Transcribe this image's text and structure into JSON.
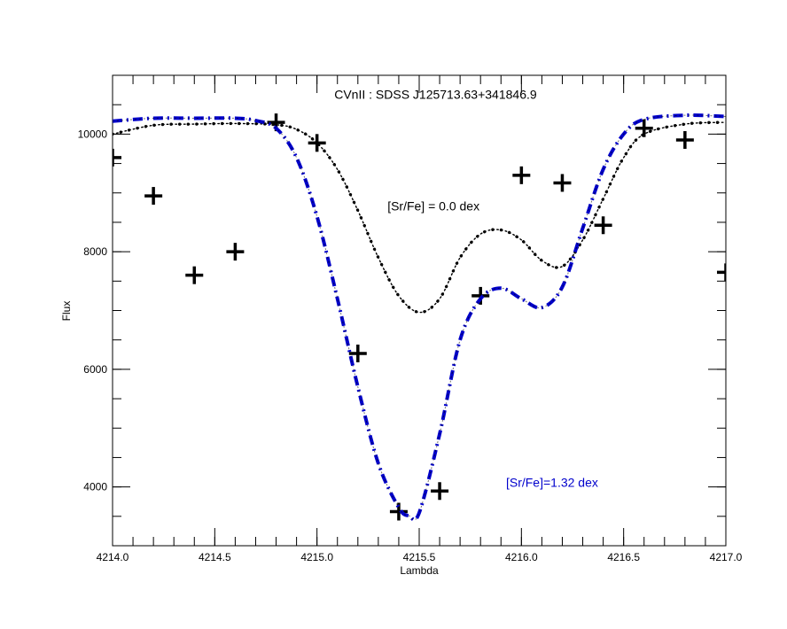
{
  "chart_data": {
    "type": "line",
    "title": "",
    "xlabel": "Lambda",
    "ylabel": "Flux",
    "xlim": [
      4214.0,
      4217.0
    ],
    "ylim": [
      3000,
      11000
    ],
    "x_ticks": [
      4214.0,
      4214.5,
      4215.0,
      4215.5,
      4216.0,
      4216.5,
      4217.0
    ],
    "x_tick_labels": [
      "4214.0",
      "4214.5",
      "4215.0",
      "4215.5",
      "4216.0",
      "4216.5",
      "4217.0"
    ],
    "y_ticks": [
      4000,
      6000,
      8000,
      10000
    ],
    "y_tick_labels": [
      "4000",
      "6000",
      "8000",
      "10000"
    ],
    "x_minor_step": 0.1,
    "y_minor_step": 500,
    "grid": false,
    "annotations": [
      {
        "text": "CVnII : SDSS J125713.63+341846.9",
        "x": 4215.58,
        "y": 10600,
        "color": "#000000"
      },
      {
        "text": "[Sr/Fe] = 0.0 dex",
        "x": 4215.57,
        "y": 8700,
        "color": "#000000"
      },
      {
        "text": "[Sr/Fe]=1.32 dex",
        "x": 4216.15,
        "y": 4000,
        "color": "#0000cc"
      }
    ],
    "series": [
      {
        "style": "observed-cross",
        "color": "#000000",
        "x": [
          4214.0,
          4214.2,
          4214.4,
          4214.6,
          4214.8,
          4215.0,
          4215.2,
          4215.4,
          4215.6,
          4215.8,
          4216.0,
          4216.2,
          4216.4,
          4216.6,
          4216.8,
          4217.0
        ],
        "y": [
          9600,
          8950,
          7600,
          8000,
          10200,
          9850,
          6270,
          3580,
          3930,
          7250,
          9300,
          9170,
          8450,
          10100,
          9900,
          7650
        ]
      },
      {
        "style": "dotted",
        "color": "#000000",
        "x": [
          4214.0,
          4214.2,
          4214.4,
          4214.6,
          4214.8,
          4214.9,
          4215.0,
          4215.1,
          4215.2,
          4215.3,
          4215.4,
          4215.5,
          4215.6,
          4215.7,
          4215.8,
          4215.9,
          4216.0,
          4216.1,
          4216.2,
          4216.3,
          4216.4,
          4216.5,
          4216.6,
          4216.8,
          4217.0
        ],
        "y": [
          10000,
          10150,
          10170,
          10180,
          10160,
          10080,
          9850,
          9400,
          8700,
          7900,
          7250,
          6970,
          7200,
          7900,
          8300,
          8370,
          8200,
          7850,
          7750,
          8200,
          8900,
          9600,
          10000,
          10170,
          10200
        ]
      },
      {
        "style": "dash-dot",
        "color": "#0000cc",
        "x": [
          4214.0,
          4214.2,
          4214.4,
          4214.6,
          4214.7,
          4214.8,
          4214.9,
          4215.0,
          4215.1,
          4215.2,
          4215.3,
          4215.4,
          4215.45,
          4215.5,
          4215.6,
          4215.7,
          4215.8,
          4215.9,
          4216.0,
          4216.1,
          4216.2,
          4216.3,
          4216.4,
          4216.5,
          4216.6,
          4216.8,
          4217.0
        ],
        "y": [
          10220,
          10270,
          10270,
          10270,
          10230,
          10100,
          9600,
          8600,
          7200,
          5700,
          4400,
          3650,
          3510,
          3560,
          4900,
          6500,
          7200,
          7380,
          7200,
          7050,
          7400,
          8400,
          9400,
          10000,
          10250,
          10320,
          10300
        ]
      }
    ]
  }
}
